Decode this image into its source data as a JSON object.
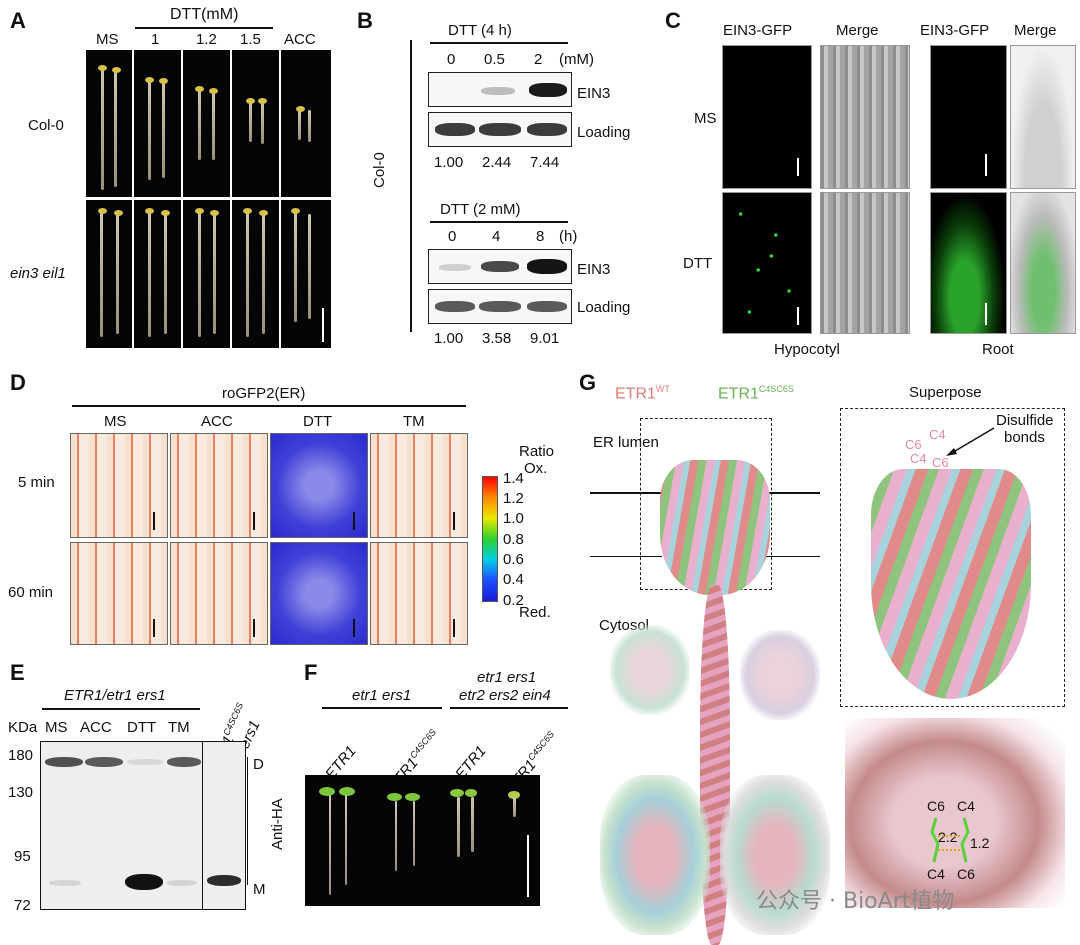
{
  "panels": {
    "A": {
      "letter": "A",
      "header": "DTT(mM)",
      "columns": [
        "MS",
        "1",
        "1.2",
        "1.5",
        "ACC"
      ],
      "rows": [
        "Col-0",
        "ein3 eil1"
      ]
    },
    "B": {
      "letter": "B",
      "side_label": "Col-0",
      "top": {
        "title": "DTT (4 h)",
        "doses": [
          "0",
          "0.5",
          "2"
        ],
        "unit": "(mM)",
        "labels": [
          "EIN3",
          "Loading"
        ],
        "values": [
          "1.00",
          "2.44",
          "7.44"
        ]
      },
      "bottom": {
        "title": "DTT (2 mM)",
        "times": [
          "0",
          "4",
          "8"
        ],
        "unit": "(h)",
        "labels": [
          "EIN3",
          "Loading"
        ],
        "values": [
          "1.00",
          "3.58",
          "9.01"
        ]
      }
    },
    "C": {
      "letter": "C",
      "columns": [
        "EIN3-GFP",
        "Merge",
        "EIN3-GFP",
        "Merge"
      ],
      "rows": [
        "MS",
        "DTT"
      ],
      "tissues": [
        "Hypocotyl",
        "Root"
      ]
    },
    "D": {
      "letter": "D",
      "header": "roGFP2(ER)",
      "columns": [
        "MS",
        "ACC",
        "DTT",
        "TM"
      ],
      "rows": [
        "5 min",
        "60 min"
      ],
      "colorbar": {
        "title_line1": "Ratio",
        "title_line2": "Ox.",
        "ticks": [
          "1.4",
          "1.2",
          "1.0",
          "0.8",
          "0.6",
          "0.4",
          "0.2"
        ],
        "bottom_label": "Red."
      }
    },
    "E": {
      "letter": "E",
      "group_label": "ETR1/etr1 ers1",
      "side_label_line1": "ETR1",
      "side_label_sup": "C4SC6S",
      "side_label_line2": "/etr1 ers1",
      "kda_label": "KDa",
      "lanes": [
        "MS",
        "ACC",
        "DTT",
        "TM"
      ],
      "markers": [
        "180",
        "130",
        "95",
        "72"
      ],
      "band_labels": [
        "D",
        "M"
      ],
      "antibody": "Anti-HA"
    },
    "F": {
      "letter": "F",
      "group1": "etr1 ers1",
      "group2_line1": "etr1 ers1",
      "group2_line2": "etr2 ers2 ein4",
      "lanes": [
        {
          "base": "ETR1",
          "sup": ""
        },
        {
          "base": "ETR1",
          "sup": "C4SC6S"
        },
        {
          "base": "ETR1",
          "sup": ""
        },
        {
          "base": "ETR1",
          "sup": "C4SC6S"
        }
      ]
    },
    "G": {
      "letter": "G",
      "label_wt": "ETR1",
      "label_wt_sup": "WT",
      "label_mut": "ETR1",
      "label_mut_sup": "C4SC6S",
      "superpose": "Superpose",
      "er_lumen": "ER lumen",
      "cytosol": "Cytosol",
      "disulfide_line1": "Disulfide",
      "disulfide_line2": "bonds",
      "residues_zoom": [
        "C6",
        "C4",
        "C4",
        "C6"
      ],
      "distances": [
        "2.2",
        "1.2"
      ],
      "residues_superpose": [
        "C6",
        "C4",
        "C4",
        "C6"
      ],
      "colors": {
        "wt": "#e07b7b",
        "mut": "#7fb96a",
        "third": "#a8d4dc",
        "pink": "#e6a6c4"
      }
    }
  },
  "watermark": "公众号 · BioArt植物"
}
